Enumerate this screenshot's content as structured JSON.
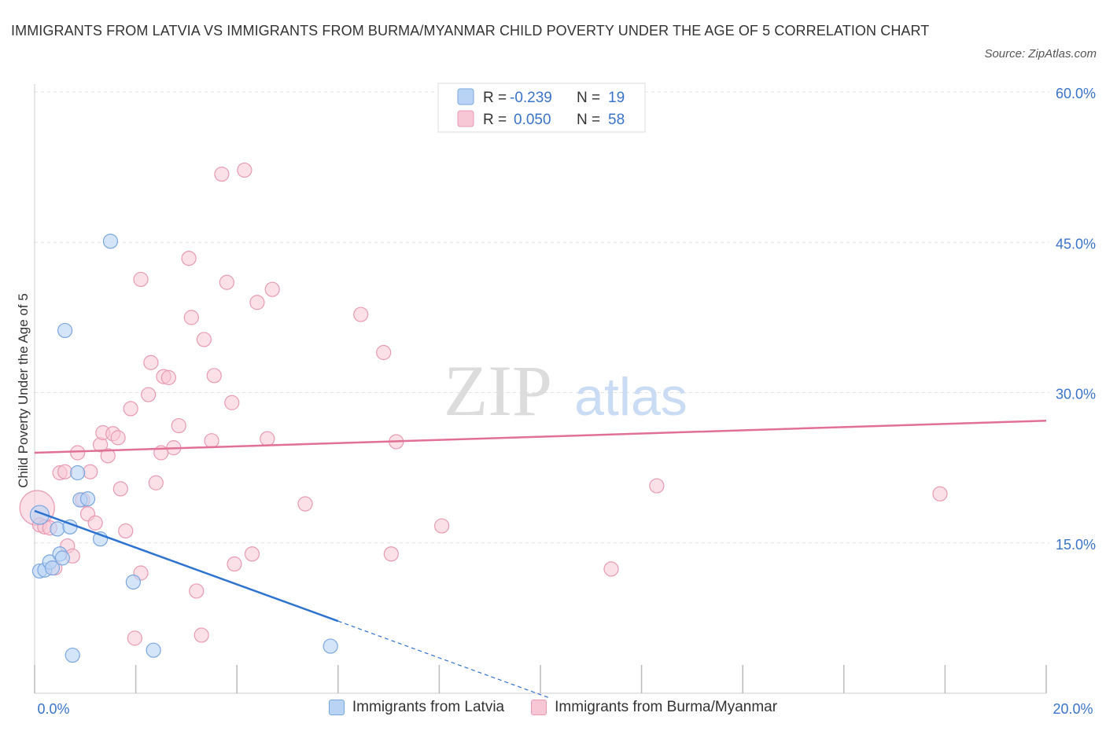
{
  "title": "IMMIGRANTS FROM LATVIA VS IMMIGRANTS FROM BURMA/MYANMAR CHILD POVERTY UNDER THE AGE OF 5 CORRELATION CHART",
  "source": "Source: ZipAtlas.com",
  "watermark": {
    "zip": "ZIP",
    "atlas": "atlas"
  },
  "legend_top": {
    "rows": [
      {
        "r_label": "R =",
        "r_value": "-0.239",
        "n_label": "N =",
        "n_value": "19"
      },
      {
        "r_label": "R =",
        "r_value": "0.050",
        "n_label": "N =",
        "n_value": "58"
      }
    ]
  },
  "colors": {
    "latvia_fill": "#b9d3f5",
    "latvia_stroke": "#7aa7e0",
    "latvia_line": "#2f73d0",
    "burma_fill": "#f8c7d6",
    "burma_stroke": "#e89ab3",
    "burma_line": "#e07096",
    "tick": "#3a74c9",
    "grid": "#e3e3e3"
  },
  "chart_data": {
    "type": "scatter",
    "title": "IMMIGRANTS FROM LATVIA VS IMMIGRANTS FROM BURMA/MYANMAR CHILD POVERTY UNDER THE AGE OF 5 CORRELATION CHART",
    "xlabel": "",
    "ylabel": "Child Poverty Under the Age of 5",
    "xlim": [
      0,
      20
    ],
    "ylim": [
      0,
      60
    ],
    "x_tick_labels": [
      "0.0%",
      "20.0%"
    ],
    "y_ticks": [
      15,
      30,
      45,
      60
    ],
    "y_tick_labels": [
      "15.0%",
      "30.0%",
      "45.0%",
      "60.0%"
    ],
    "grid": true,
    "legend": "bottom-center",
    "series": [
      {
        "name": "Immigrants from Latvia",
        "color": "#7aa7e0",
        "r": -0.239,
        "n": 19,
        "trend": {
          "x0": 0,
          "y0": 18.2,
          "x1": 6.0,
          "y1": 7.2,
          "dash_to_x": 10.2
        },
        "points": [
          [
            0.1,
            17.8
          ],
          [
            0.1,
            12.2
          ],
          [
            0.2,
            12.3
          ],
          [
            0.3,
            13.1
          ],
          [
            0.35,
            12.5
          ],
          [
            0.45,
            16.4
          ],
          [
            0.5,
            13.9
          ],
          [
            0.55,
            13.5
          ],
          [
            0.7,
            16.6
          ],
          [
            0.75,
            3.8
          ],
          [
            0.85,
            22.0
          ],
          [
            0.9,
            19.3
          ],
          [
            1.05,
            19.4
          ],
          [
            1.3,
            15.4
          ],
          [
            1.5,
            45.1
          ],
          [
            1.95,
            11.1
          ],
          [
            2.35,
            4.3
          ],
          [
            0.6,
            36.2
          ],
          [
            5.85,
            4.7
          ]
        ]
      },
      {
        "name": "Immigrants from Burma/Myanmar",
        "color": "#e89ab3",
        "r": 0.05,
        "n": 58,
        "trend": {
          "x0": 0,
          "y0": 24.0,
          "x1": 20,
          "y1": 27.2
        },
        "points": [
          [
            0.05,
            18.5
          ],
          [
            0.1,
            16.8
          ],
          [
            0.2,
            16.6
          ],
          [
            0.3,
            16.5
          ],
          [
            0.4,
            12.5
          ],
          [
            0.5,
            22.0
          ],
          [
            0.6,
            22.1
          ],
          [
            0.65,
            14.7
          ],
          [
            0.75,
            13.7
          ],
          [
            0.85,
            24.0
          ],
          [
            0.95,
            19.3
          ],
          [
            1.05,
            17.9
          ],
          [
            1.1,
            22.1
          ],
          [
            1.2,
            17.0
          ],
          [
            1.3,
            24.8
          ],
          [
            1.35,
            26.0
          ],
          [
            1.45,
            23.7
          ],
          [
            1.55,
            25.9
          ],
          [
            1.65,
            25.5
          ],
          [
            1.7,
            20.4
          ],
          [
            1.8,
            16.2
          ],
          [
            1.9,
            28.4
          ],
          [
            1.98,
            5.5
          ],
          [
            2.1,
            41.3
          ],
          [
            2.1,
            12.0
          ],
          [
            2.25,
            29.8
          ],
          [
            2.3,
            33.0
          ],
          [
            2.4,
            21.0
          ],
          [
            2.5,
            24.0
          ],
          [
            2.55,
            31.6
          ],
          [
            2.65,
            31.5
          ],
          [
            2.75,
            24.5
          ],
          [
            2.85,
            26.7
          ],
          [
            3.05,
            43.4
          ],
          [
            3.1,
            37.5
          ],
          [
            3.2,
            10.2
          ],
          [
            3.3,
            5.8
          ],
          [
            3.35,
            35.3
          ],
          [
            3.5,
            25.2
          ],
          [
            3.55,
            31.7
          ],
          [
            3.7,
            51.8
          ],
          [
            3.8,
            41.0
          ],
          [
            3.9,
            29.0
          ],
          [
            3.95,
            12.9
          ],
          [
            4.15,
            52.2
          ],
          [
            4.3,
            13.9
          ],
          [
            4.4,
            39.0
          ],
          [
            4.6,
            25.4
          ],
          [
            4.7,
            40.3
          ],
          [
            5.35,
            18.9
          ],
          [
            6.45,
            37.8
          ],
          [
            6.9,
            34.0
          ],
          [
            7.05,
            13.9
          ],
          [
            7.15,
            25.1
          ],
          [
            8.05,
            16.7
          ],
          [
            11.4,
            12.4
          ],
          [
            12.3,
            20.7
          ],
          [
            17.9,
            19.9
          ]
        ]
      }
    ]
  },
  "bottom_legend": {
    "latvia": "Immigrants from Latvia",
    "burma": "Immigrants from Burma/Myanmar"
  }
}
